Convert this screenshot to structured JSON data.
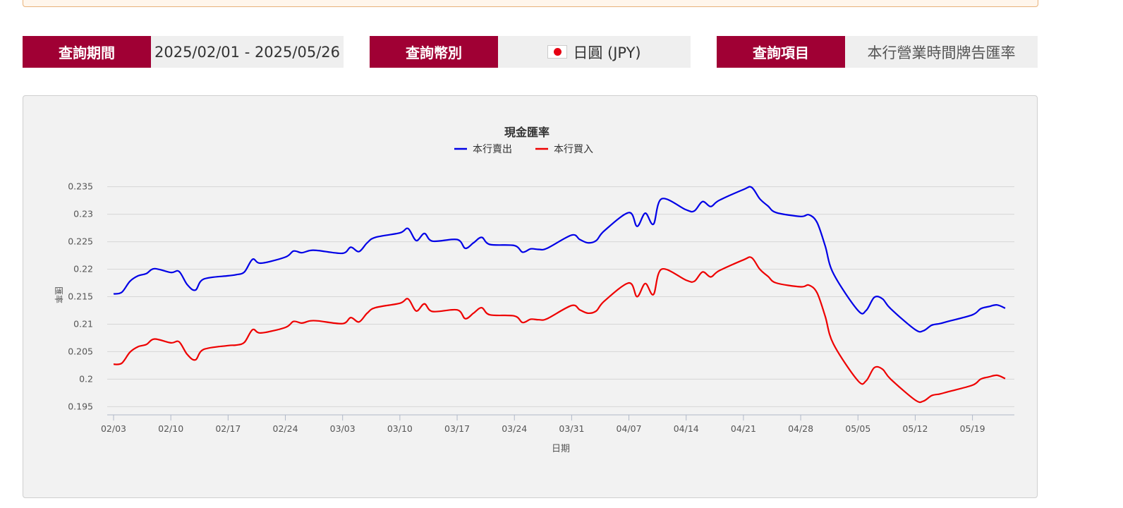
{
  "query": {
    "period_label": "查詢期間",
    "period_value": "2025/02/01 - 2025/05/26",
    "currency_label": "查詢幣別",
    "currency_value": "日圓 (JPY)",
    "currency_flag_icon": "japan-flag-icon",
    "item_label": "查詢項目",
    "item_value": "本行營業時間牌告匯率"
  },
  "colors": {
    "accent": "#a00034",
    "sell": "#0000e6",
    "buy": "#ee0000"
  },
  "chart_data": {
    "type": "line",
    "title": "現金匯率",
    "xlabel": "日期",
    "ylabel": "匯率",
    "ylim": [
      0.1935,
      0.2365
    ],
    "y_ticks": [
      0.195,
      0.2,
      0.205,
      0.21,
      0.215,
      0.22,
      0.225,
      0.23,
      0.235
    ],
    "y_tick_labels": [
      "0.195",
      "0.2",
      "0.205",
      "0.21",
      "0.215",
      "0.22",
      "0.225",
      "0.23",
      "0.235"
    ],
    "x_tick_labels": [
      "02/03",
      "02/10",
      "02/17",
      "02/24",
      "03/03",
      "03/10",
      "03/17",
      "03/24",
      "03/31",
      "04/07",
      "04/14",
      "04/21",
      "04/28",
      "05/05",
      "05/12",
      "05/19"
    ],
    "x_ticks": [
      0,
      7,
      14,
      21,
      28,
      35,
      42,
      49,
      56,
      63,
      70,
      77,
      84,
      91,
      98,
      105
    ],
    "grid": true,
    "legend_position": "top-center",
    "x": [
      0,
      1,
      2,
      3,
      4,
      5,
      7,
      8,
      9,
      10,
      11,
      14,
      15,
      16,
      17,
      18,
      21,
      22,
      23,
      24,
      25,
      28,
      29,
      30,
      31,
      32,
      35,
      36,
      37,
      38,
      39,
      42,
      43,
      44,
      45,
      46,
      49,
      50,
      51,
      52,
      53,
      56,
      57,
      58,
      59,
      60,
      63,
      64,
      65,
      66,
      67,
      70,
      71,
      72,
      73,
      74,
      77,
      78,
      79,
      80,
      81,
      84,
      85,
      86,
      87,
      88,
      91,
      92,
      93,
      94,
      95,
      98,
      99,
      100,
      101,
      102,
      105,
      106,
      107,
      108,
      109
    ],
    "series": [
      {
        "name": "本行賣出",
        "values": [
          0.2155,
          0.2158,
          0.2178,
          0.2188,
          0.2192,
          0.2201,
          0.2194,
          0.2196,
          0.2172,
          0.2162,
          0.2182,
          0.2188,
          0.219,
          0.2195,
          0.2218,
          0.2211,
          0.2222,
          0.2233,
          0.223,
          0.2234,
          0.2234,
          0.2229,
          0.224,
          0.2232,
          0.2248,
          0.2258,
          0.2266,
          0.2274,
          0.2252,
          0.2265,
          0.2251,
          0.2254,
          0.2238,
          0.2248,
          0.2258,
          0.2245,
          0.2243,
          0.2231,
          0.2237,
          0.2236,
          0.2238,
          0.2262,
          0.2254,
          0.2248,
          0.2252,
          0.227,
          0.2303,
          0.2278,
          0.2302,
          0.2282,
          0.2328,
          0.2308,
          0.2306,
          0.2323,
          0.2314,
          0.2325,
          0.2345,
          0.2349,
          0.2328,
          0.2315,
          0.2303,
          0.2296,
          0.2299,
          0.2285,
          0.2242,
          0.2192,
          0.2125,
          0.2125,
          0.2149,
          0.2146,
          0.2128,
          0.209,
          0.2088,
          0.2098,
          0.2101,
          0.2105,
          0.2117,
          0.2128,
          0.2132,
          0.2135,
          0.2129
        ]
      },
      {
        "name": "本行買入",
        "values": [
          0.2027,
          0.2029,
          0.2049,
          0.2059,
          0.2063,
          0.2073,
          0.2066,
          0.2068,
          0.2045,
          0.2035,
          0.2054,
          0.2061,
          0.2062,
          0.2067,
          0.209,
          0.2084,
          0.2094,
          0.2105,
          0.2102,
          0.2106,
          0.2106,
          0.2101,
          0.2112,
          0.2104,
          0.212,
          0.213,
          0.2138,
          0.2146,
          0.2124,
          0.2137,
          0.2123,
          0.2126,
          0.211,
          0.212,
          0.213,
          0.2117,
          0.2115,
          0.2103,
          0.2109,
          0.2108,
          0.211,
          0.2134,
          0.2126,
          0.212,
          0.2124,
          0.2142,
          0.2175,
          0.215,
          0.2174,
          0.2154,
          0.22,
          0.218,
          0.2178,
          0.2195,
          0.2186,
          0.2197,
          0.2217,
          0.2221,
          0.22,
          0.2187,
          0.2175,
          0.2168,
          0.2171,
          0.2157,
          0.2114,
          0.2064,
          0.1997,
          0.1997,
          0.2021,
          0.2018,
          0.2,
          0.1962,
          0.196,
          0.197,
          0.1973,
          0.1977,
          0.1989,
          0.2,
          0.2004,
          0.2007,
          0.2001
        ]
      }
    ]
  }
}
